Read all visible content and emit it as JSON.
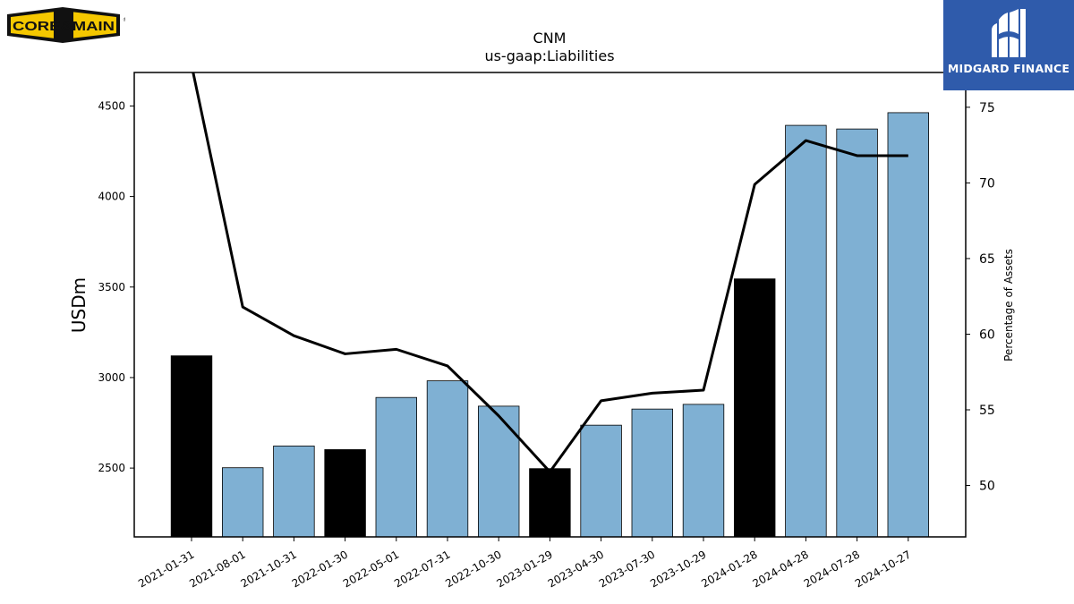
{
  "logos": {
    "left_brand": "CORE&MAIN",
    "left_mark": "®",
    "right_brand": "MIDGARD FINANCE"
  },
  "colors": {
    "bar_normal": "#7fb0d3",
    "bar_highlight": "#000000",
    "line": "#000000",
    "midgard_bg": "#2f5bab",
    "core_yellow": "#f5c800"
  },
  "chart_data": {
    "type": "bar",
    "title": "CNM",
    "subtitle": "us-gaap:Liabilities",
    "ylabel": "USDm",
    "y2label": "Percentage of Assets",
    "categories": [
      "2021-01-31",
      "2021-08-01",
      "2021-10-31",
      "2022-01-30",
      "2022-05-01",
      "2022-07-31",
      "2022-10-30",
      "2023-01-29",
      "2023-04-30",
      "2023-07-30",
      "2023-10-29",
      "2024-01-28",
      "2024-04-28",
      "2024-07-28",
      "2024-10-27"
    ],
    "series": [
      {
        "type": "bar",
        "values": [
          3120,
          2502,
          2622,
          2602,
          2890,
          2982,
          2842,
          2497,
          2737,
          2826,
          2852,
          3545,
          4393,
          4373,
          4463
        ],
        "highlight": [
          true,
          false,
          false,
          true,
          false,
          false,
          false,
          true,
          false,
          false,
          false,
          true,
          false,
          false,
          false
        ]
      },
      {
        "type": "line",
        "axis": "right",
        "values": [
          77.8,
          61.8,
          59.9,
          58.7,
          59.0,
          57.9,
          54.6,
          50.9,
          55.6,
          56.1,
          56.3,
          69.9,
          72.8,
          71.8,
          71.8
        ]
      }
    ],
    "ylim": [
      2120,
      4685
    ],
    "yticks": [
      2500,
      3000,
      3500,
      4000,
      4500
    ],
    "y2lim": [
      46.6,
      77.3
    ],
    "y2ticks": [
      50,
      55,
      60,
      65,
      70,
      75
    ],
    "grid": false,
    "legend": "none"
  }
}
